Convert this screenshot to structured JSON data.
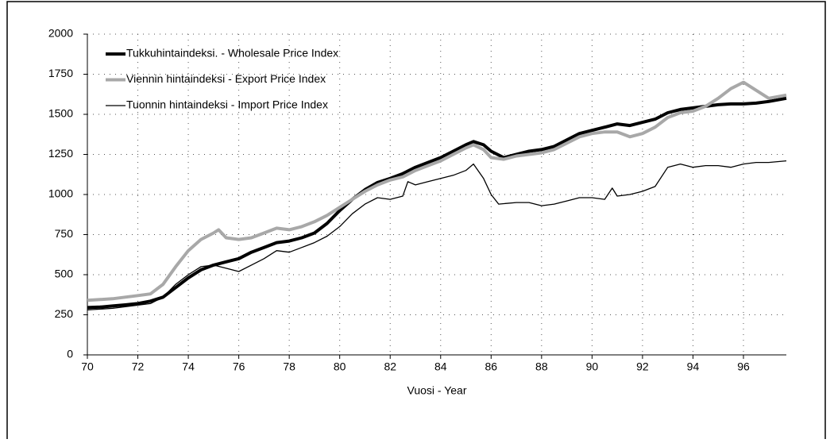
{
  "chart_data": {
    "type": "line",
    "x_label": "Vuosi - Year",
    "xlim": [
      70,
      97.7
    ],
    "xticks": [
      70,
      72,
      74,
      76,
      78,
      80,
      82,
      84,
      86,
      88,
      90,
      92,
      94,
      96
    ],
    "ylim": [
      0,
      2000
    ],
    "yticks": [
      0,
      250,
      500,
      750,
      1000,
      1250,
      1500,
      1750,
      2000
    ],
    "grid": true,
    "legend": "upper left",
    "series": [
      {
        "name": "Tukkuhintaindeksi. - Wholesale Price Index",
        "color": "#000000",
        "width": "thick",
        "x": [
          70,
          70.5,
          71,
          71.5,
          72,
          72.5,
          73,
          73.5,
          74,
          74.5,
          75,
          75.5,
          76,
          76.5,
          77,
          77.5,
          78,
          78.5,
          79,
          79.5,
          80,
          80.5,
          81,
          81.5,
          82,
          82.5,
          83,
          83.5,
          84,
          84.5,
          85,
          85.3,
          85.7,
          86,
          86.5,
          87,
          87.5,
          88,
          88.5,
          89,
          89.5,
          90,
          90.5,
          91,
          91.5,
          92,
          92.5,
          93,
          93.5,
          94,
          94.5,
          95,
          95.5,
          96,
          96.5,
          97,
          97.7
        ],
        "values": [
          295,
          298,
          305,
          312,
          320,
          335,
          360,
          420,
          480,
          530,
          560,
          580,
          600,
          640,
          670,
          700,
          710,
          730,
          760,
          820,
          900,
          970,
          1030,
          1075,
          1100,
          1130,
          1170,
          1200,
          1230,
          1270,
          1310,
          1330,
          1310,
          1270,
          1230,
          1250,
          1270,
          1280,
          1300,
          1340,
          1380,
          1400,
          1420,
          1440,
          1430,
          1450,
          1470,
          1510,
          1530,
          1540,
          1550,
          1560,
          1565,
          1565,
          1570,
          1580,
          1600
        ]
      },
      {
        "name": "Viennin hintaindeksi - Export Price Index",
        "color": "#a8a8a8",
        "width": "thick",
        "x": [
          70,
          71,
          72,
          72.5,
          73,
          73.5,
          74,
          74.5,
          75,
          75.2,
          75.5,
          76,
          76.5,
          77,
          77.5,
          78,
          78.5,
          79,
          79.5,
          80,
          80.5,
          81,
          81.5,
          82,
          82.5,
          83,
          83.5,
          84,
          84.5,
          85,
          85.3,
          85.7,
          86,
          86.5,
          87,
          87.5,
          88,
          88.5,
          89,
          89.5,
          90,
          90.5,
          91,
          91.5,
          92,
          92.5,
          93,
          93.5,
          94,
          94.5,
          95,
          95.5,
          96,
          96.5,
          97,
          97.7
        ],
        "values": [
          340,
          350,
          370,
          380,
          440,
          550,
          650,
          720,
          760,
          780,
          730,
          720,
          730,
          760,
          790,
          780,
          800,
          830,
          870,
          920,
          970,
          1020,
          1060,
          1090,
          1110,
          1150,
          1180,
          1210,
          1250,
          1290,
          1310,
          1280,
          1230,
          1220,
          1240,
          1250,
          1260,
          1280,
          1320,
          1360,
          1380,
          1390,
          1390,
          1360,
          1380,
          1420,
          1480,
          1510,
          1520,
          1550,
          1600,
          1660,
          1700,
          1650,
          1600,
          1620
        ]
      },
      {
        "name": "Tuonnin hintaindeksi - Import Price Index",
        "color": "#000000",
        "width": "thin",
        "x": [
          70,
          71,
          72,
          72.5,
          73,
          73.5,
          74,
          74.5,
          75,
          75.5,
          76,
          76.5,
          77,
          77.5,
          78,
          78.5,
          79,
          79.5,
          80,
          80.5,
          81,
          81.5,
          82,
          82.5,
          82.7,
          83,
          83.5,
          84,
          84.5,
          85,
          85.3,
          85.7,
          86,
          86.3,
          87,
          87.5,
          88,
          88.5,
          89,
          89.5,
          90,
          90.5,
          90.8,
          91,
          91.5,
          92,
          92.5,
          93,
          93.5,
          94,
          94.5,
          95,
          95.5,
          96,
          96.5,
          97,
          97.7
        ],
        "values": [
          280,
          290,
          310,
          320,
          360,
          440,
          500,
          550,
          560,
          540,
          520,
          560,
          600,
          650,
          640,
          670,
          700,
          740,
          800,
          880,
          940,
          980,
          970,
          990,
          1080,
          1060,
          1080,
          1100,
          1120,
          1150,
          1190,
          1100,
          1000,
          940,
          950,
          950,
          930,
          940,
          960,
          980,
          980,
          970,
          1040,
          990,
          1000,
          1020,
          1050,
          1170,
          1190,
          1170,
          1180,
          1180,
          1170,
          1190,
          1200,
          1200,
          1210
        ]
      }
    ]
  }
}
